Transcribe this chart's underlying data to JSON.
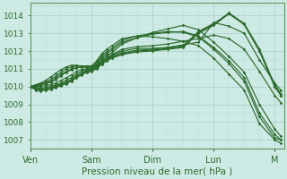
{
  "background_color": "#ceeae4",
  "grid_major_color": "#a8cdc8",
  "grid_minor_color": "#bcdad6",
  "line_color": "#2d6b2d",
  "xlim": [
    0,
    4.15
  ],
  "ylim": [
    1006.5,
    1014.7
  ],
  "yticks": [
    1007,
    1008,
    1009,
    1010,
    1011,
    1012,
    1013,
    1014
  ],
  "xtick_labels": [
    "Ven",
    "Sam",
    "Dim",
    "Lun",
    "M"
  ],
  "xtick_positions": [
    0,
    1,
    2,
    3,
    4
  ],
  "xlabel": "Pression niveau de la mer( hPa )",
  "x": [
    0.0,
    0.083,
    0.167,
    0.25,
    0.333,
    0.417,
    0.5,
    0.583,
    0.667,
    0.75,
    0.833,
    0.917,
    1.0,
    1.083,
    1.167,
    1.25,
    1.333,
    1.5,
    1.75,
    2.0,
    2.25,
    2.5,
    2.75,
    3.0,
    3.25,
    3.5,
    3.75,
    4.0,
    4.1
  ],
  "series": [
    [
      1010.0,
      1010.05,
      1010.1,
      1010.2,
      1010.3,
      1010.5,
      1010.7,
      1010.85,
      1011.0,
      1011.05,
      1011.1,
      1011.1,
      1011.1,
      1011.25,
      1011.55,
      1011.75,
      1011.9,
      1012.4,
      1012.75,
      1013.05,
      1013.25,
      1013.45,
      1013.2,
      1012.5,
      1011.7,
      1010.8,
      1009.0,
      1007.6,
      1007.2
    ],
    [
      1010.0,
      1010.05,
      1010.1,
      1010.15,
      1010.25,
      1010.4,
      1010.6,
      1010.8,
      1010.95,
      1011.05,
      1011.1,
      1011.1,
      1011.1,
      1011.3,
      1011.65,
      1011.85,
      1012.05,
      1012.5,
      1012.75,
      1012.95,
      1013.05,
      1013.1,
      1012.85,
      1012.2,
      1011.45,
      1010.5,
      1008.5,
      1007.3,
      1007.0
    ],
    [
      1010.0,
      1010.1,
      1010.15,
      1010.25,
      1010.4,
      1010.6,
      1010.8,
      1011.0,
      1011.1,
      1011.15,
      1011.15,
      1011.15,
      1011.15,
      1011.4,
      1011.75,
      1011.95,
      1012.15,
      1012.6,
      1012.85,
      1013.0,
      1013.1,
      1013.05,
      1012.8,
      1012.1,
      1011.3,
      1010.3,
      1008.3,
      1007.1,
      1007.0
    ],
    [
      1010.0,
      1010.1,
      1010.2,
      1010.35,
      1010.55,
      1010.75,
      1010.95,
      1011.1,
      1011.2,
      1011.2,
      1011.15,
      1011.15,
      1011.15,
      1011.45,
      1011.85,
      1012.1,
      1012.3,
      1012.7,
      1012.85,
      1012.8,
      1012.7,
      1012.55,
      1012.3,
      1011.6,
      1010.7,
      1009.8,
      1007.9,
      1007.0,
      1006.8
    ],
    [
      1010.0,
      1010.0,
      1010.0,
      1010.05,
      1010.1,
      1010.2,
      1010.35,
      1010.5,
      1010.65,
      1010.85,
      1010.95,
      1011.0,
      1011.05,
      1011.2,
      1011.45,
      1011.65,
      1011.8,
      1012.1,
      1012.25,
      1012.3,
      1012.4,
      1012.55,
      1012.7,
      1012.9,
      1012.7,
      1012.1,
      1010.85,
      1009.5,
      1009.1
    ],
    [
      1010.0,
      1009.95,
      1009.9,
      1009.95,
      1010.0,
      1010.1,
      1010.2,
      1010.35,
      1010.5,
      1010.7,
      1010.85,
      1010.95,
      1011.0,
      1011.15,
      1011.4,
      1011.6,
      1011.75,
      1012.0,
      1012.15,
      1012.15,
      1012.2,
      1012.35,
      1012.5,
      1013.6,
      1013.4,
      1013.0,
      1011.5,
      1010.2,
      1009.8
    ],
    [
      1010.0,
      1009.9,
      1009.85,
      1009.9,
      1009.95,
      1010.05,
      1010.15,
      1010.25,
      1010.4,
      1010.6,
      1010.75,
      1010.9,
      1010.95,
      1011.1,
      1011.35,
      1011.55,
      1011.7,
      1011.9,
      1012.05,
      1012.1,
      1012.2,
      1012.3,
      1013.1,
      1013.55,
      1014.1,
      1013.5,
      1012.0,
      1010.0,
      1009.5
    ],
    [
      1010.0,
      1009.85,
      1009.8,
      1009.85,
      1009.9,
      1010.0,
      1010.1,
      1010.2,
      1010.35,
      1010.55,
      1010.7,
      1010.85,
      1010.9,
      1011.05,
      1011.3,
      1011.5,
      1011.65,
      1011.85,
      1012.0,
      1012.05,
      1012.15,
      1012.25,
      1013.05,
      1013.5,
      1014.15,
      1013.55,
      1012.1,
      1010.1,
      1009.6
    ],
    [
      1010.0,
      1009.8,
      1009.75,
      1009.8,
      1009.85,
      1009.95,
      1010.05,
      1010.15,
      1010.3,
      1010.5,
      1010.65,
      1010.8,
      1010.85,
      1011.0,
      1011.25,
      1011.45,
      1011.6,
      1011.8,
      1011.95,
      1012.0,
      1012.1,
      1012.2,
      1013.0,
      1013.45,
      1014.1,
      1013.5,
      1012.0,
      1010.0,
      1009.5
    ]
  ],
  "marker": "D",
  "markersize": 1.8,
  "linewidth": 0.85,
  "ylabel_fontsize": 6.5,
  "xlabel_fontsize": 7.5
}
